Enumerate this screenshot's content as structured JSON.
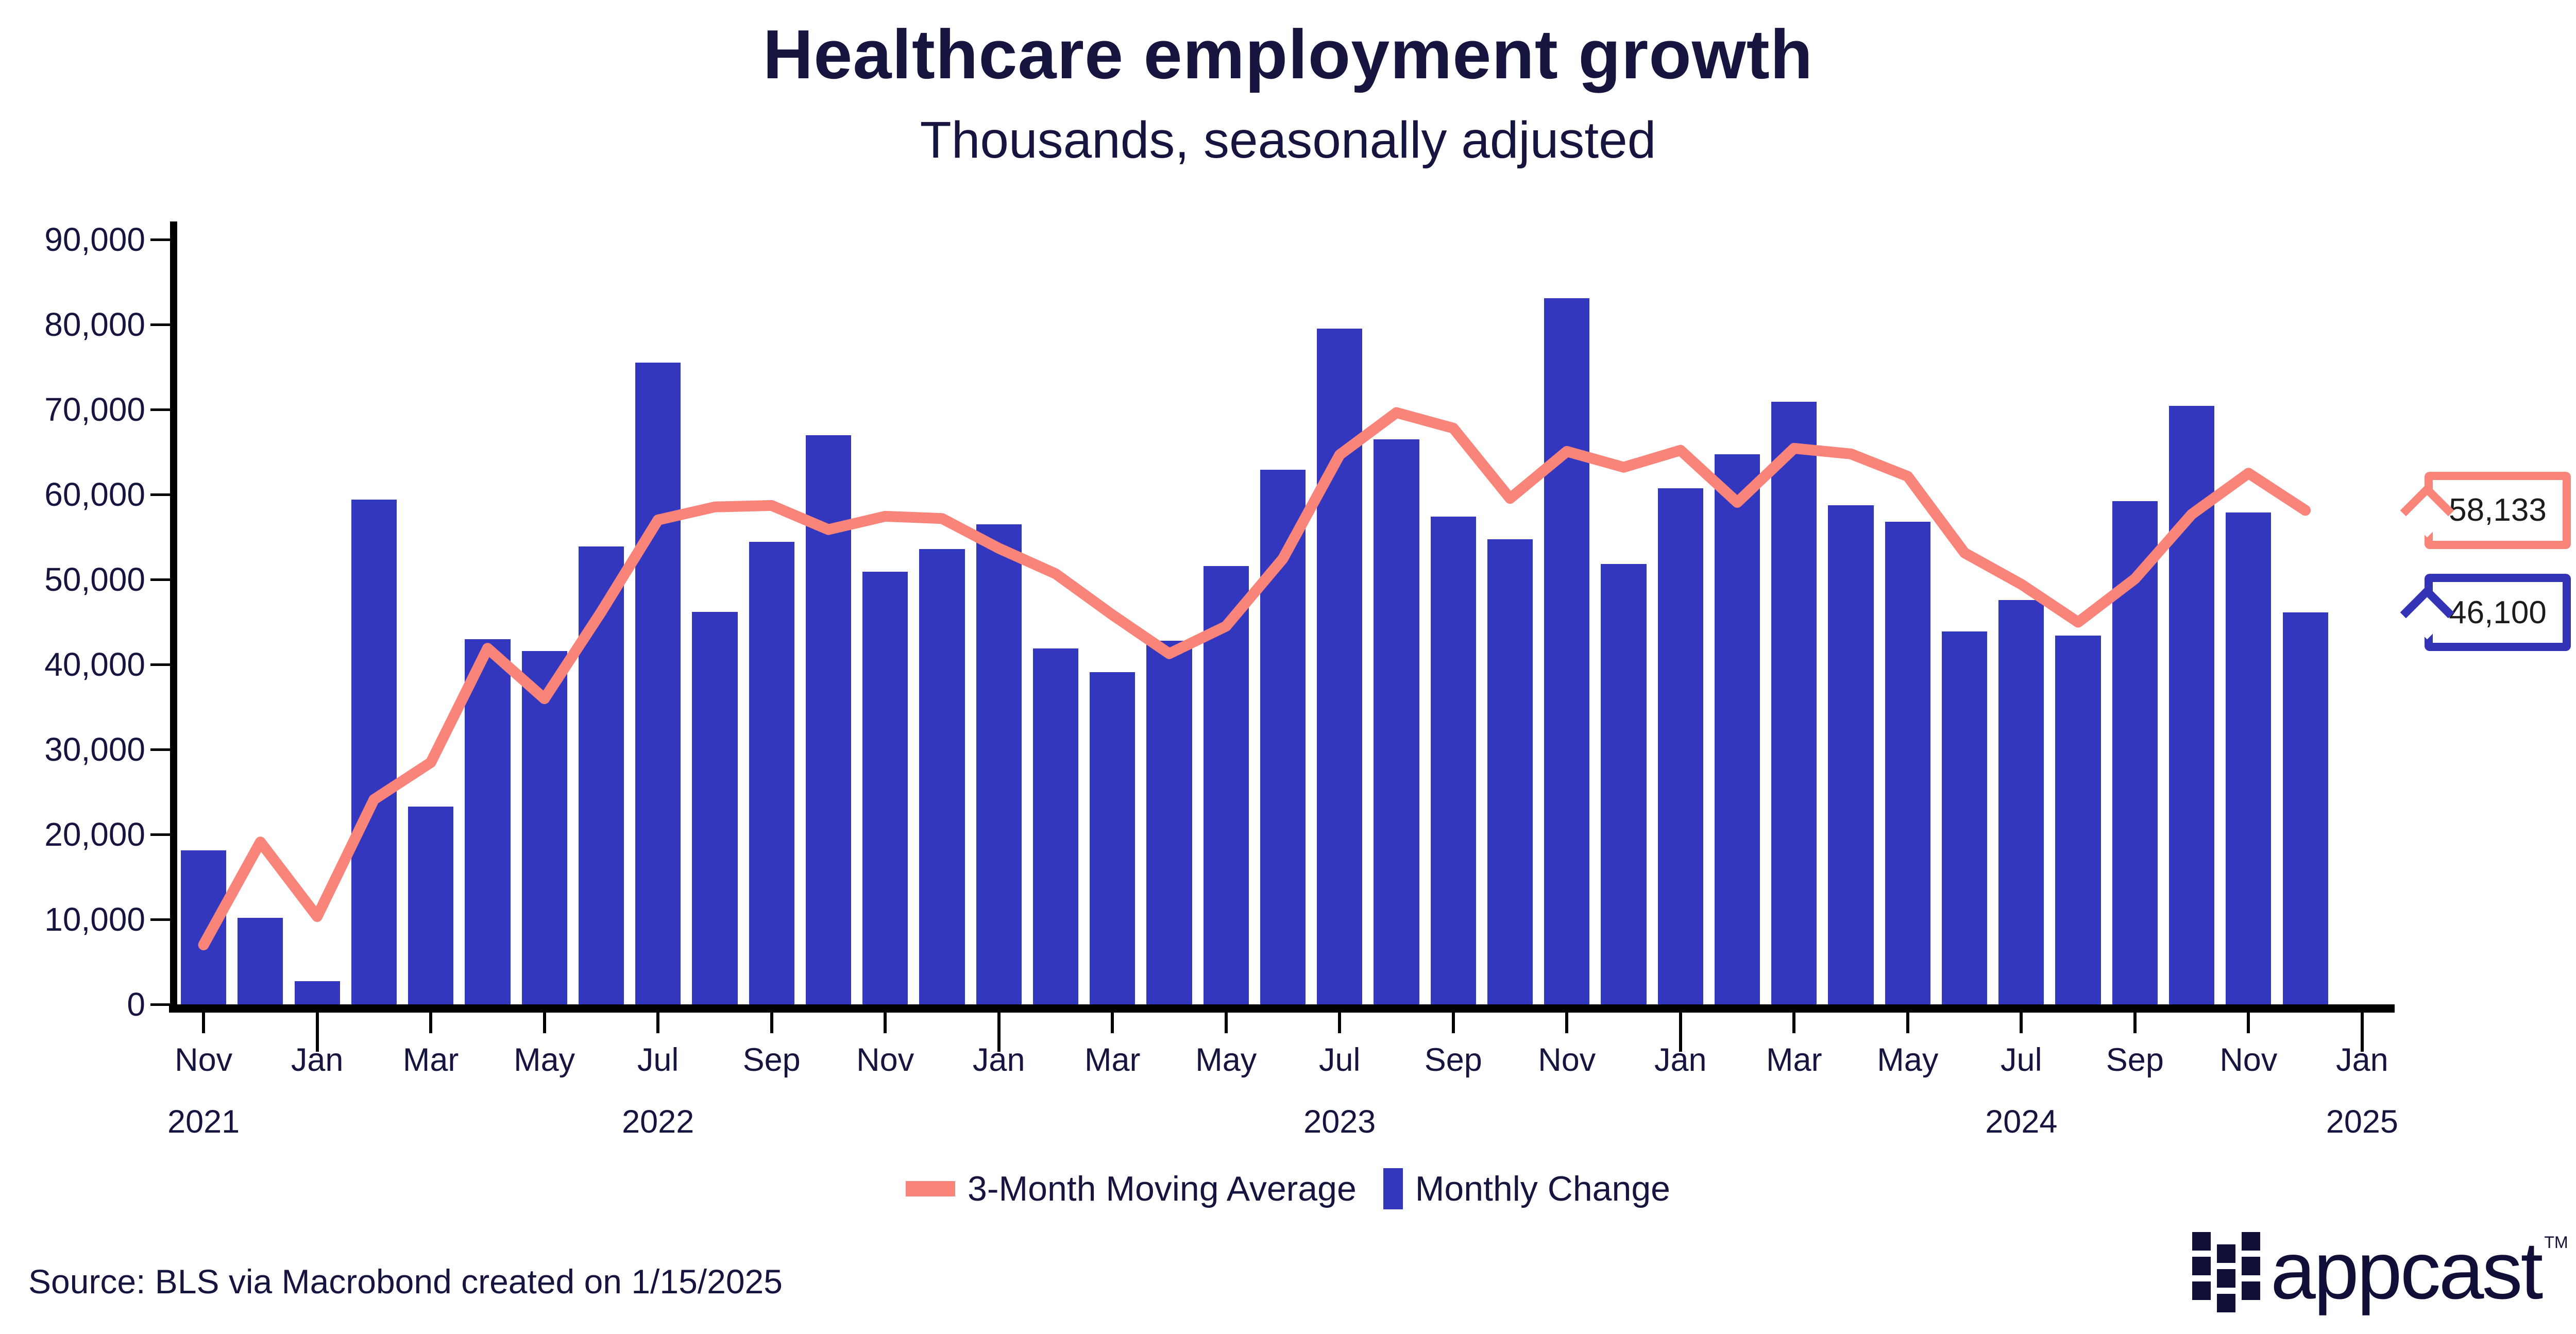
{
  "title": "Healthcare employment growth",
  "subtitle": "Thousands, seasonally adjusted",
  "source": "Source: BLS via Macrobond created on 1/15/2025",
  "logo": {
    "text": "appcast",
    "tm": "TM"
  },
  "colors": {
    "bar": "#3337bd",
    "line": "#f9847a",
    "text_navy": "#15153f",
    "axis": "#000000"
  },
  "legend": {
    "items": [
      {
        "label": "3-Month Moving Average",
        "swatch": "line",
        "color": "#f9847a"
      },
      {
        "label": "Monthly Change",
        "swatch": "bar",
        "color": "#3337bd"
      }
    ]
  },
  "callouts": [
    {
      "value": "58,133",
      "series": "3-Month Moving Average",
      "color": "#f9847a",
      "at": 58133
    },
    {
      "value": "46,100",
      "series": "Monthly Change",
      "color": "#3233b5",
      "at": 46100
    }
  ],
  "chart_data": {
    "type": "bar",
    "title": "Healthcare employment growth",
    "subtitle": "Thousands, seasonally adjusted",
    "xlabel": "",
    "ylabel": "",
    "ylim": [
      0,
      90000
    ],
    "grid": false,
    "legend_position": "bottom",
    "categories": [
      "Nov 2021",
      "Dec 2021",
      "Jan 2022",
      "Feb 2022",
      "Mar 2022",
      "Apr 2022",
      "May 2022",
      "Jun 2022",
      "Jul 2022",
      "Aug 2022",
      "Sep 2022",
      "Oct 2022",
      "Nov 2022",
      "Dec 2022",
      "Jan 2023",
      "Feb 2023",
      "Mar 2023",
      "Apr 2023",
      "May 2023",
      "Jun 2023",
      "Jul 2023",
      "Aug 2023",
      "Sep 2023",
      "Oct 2023",
      "Nov 2023",
      "Dec 2023",
      "Jan 2024",
      "Feb 2024",
      "Mar 2024",
      "Apr 2024",
      "May 2024",
      "Jun 2024",
      "Jul 2024",
      "Aug 2024",
      "Sep 2024",
      "Oct 2024",
      "Nov 2024",
      "Dec 2024"
    ],
    "series": [
      {
        "name": "Monthly Change",
        "type": "bar",
        "color": "#3337bd",
        "values": [
          18100,
          10200,
          2700,
          59400,
          23300,
          43000,
          41600,
          53900,
          75500,
          46200,
          54400,
          67000,
          50900,
          53600,
          56500,
          41900,
          39100,
          42800,
          51600,
          62900,
          79500,
          66500,
          57400,
          54700,
          83100,
          51800,
          60700,
          64700,
          70900,
          58700,
          56800,
          43900,
          47600,
          43400,
          59200,
          70400,
          57900,
          46100
        ]
      },
      {
        "name": "3-Month Moving Average",
        "type": "line",
        "color": "#f9847a",
        "values": [
          7000,
          19100,
          10333,
          24100,
          28467,
          41900,
          35967,
          46167,
          57000,
          58533,
          58700,
          55867,
          57433,
          57167,
          53667,
          50667,
          45833,
          41267,
          44500,
          52433,
          64667,
          69633,
          67800,
          59533,
          65067,
          63200,
          65200,
          59067,
          65433,
          64767,
          62133,
          53133,
          49433,
          44967,
          50067,
          57667,
          62500,
          58133
        ]
      }
    ],
    "y_ticks": [
      0,
      10000,
      20000,
      30000,
      40000,
      50000,
      60000,
      70000,
      80000,
      90000
    ],
    "y_tick_labels": [
      "0",
      "10,000",
      "20,000",
      "30,000",
      "40,000",
      "50,000",
      "60,000",
      "70,000",
      "80,000",
      "90,000"
    ],
    "x_slots": 39,
    "x_ticks": [
      {
        "slot": 0,
        "label": "Nov",
        "long": false
      },
      {
        "slot": 2,
        "label": "Jan",
        "long": true
      },
      {
        "slot": 4,
        "label": "Mar",
        "long": false
      },
      {
        "slot": 6,
        "label": "May",
        "long": false
      },
      {
        "slot": 8,
        "label": "Jul",
        "long": false
      },
      {
        "slot": 10,
        "label": "Sep",
        "long": false
      },
      {
        "slot": 12,
        "label": "Nov",
        "long": false
      },
      {
        "slot": 14,
        "label": "Jan",
        "long": true
      },
      {
        "slot": 16,
        "label": "Mar",
        "long": false
      },
      {
        "slot": 18,
        "label": "May",
        "long": false
      },
      {
        "slot": 20,
        "label": "Jul",
        "long": false
      },
      {
        "slot": 22,
        "label": "Sep",
        "long": false
      },
      {
        "slot": 24,
        "label": "Nov",
        "long": false
      },
      {
        "slot": 26,
        "label": "Jan",
        "long": true
      },
      {
        "slot": 28,
        "label": "Mar",
        "long": false
      },
      {
        "slot": 30,
        "label": "May",
        "long": false
      },
      {
        "slot": 32,
        "label": "Jul",
        "long": false
      },
      {
        "slot": 34,
        "label": "Sep",
        "long": false
      },
      {
        "slot": 36,
        "label": "Nov",
        "long": false
      },
      {
        "slot": 38,
        "label": "Jan",
        "long": true
      }
    ],
    "year_labels": [
      {
        "slot": 0,
        "label": "2021"
      },
      {
        "slot": 8,
        "label": "2022"
      },
      {
        "slot": 20,
        "label": "2023"
      },
      {
        "slot": 32,
        "label": "2024"
      },
      {
        "slot": 38,
        "label": "2025"
      }
    ]
  }
}
